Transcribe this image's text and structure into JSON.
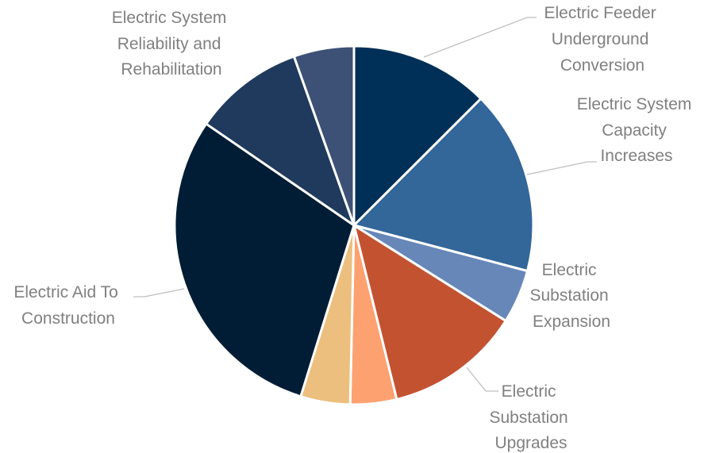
{
  "chart_data": {
    "type": "pie",
    "title": "",
    "slices": [
      {
        "label": "Electric Feeder Underground Conversion",
        "value": 12.9,
        "color": "#003057"
      },
      {
        "label": "Electric System Capacity Increases",
        "value": 17.1,
        "color": "#336699"
      },
      {
        "label": "Electric Substation Expansion",
        "value": 5.0,
        "color": "#6687b8"
      },
      {
        "label": "Electric Substation Upgrades",
        "value": 12.6,
        "color": "#c35231"
      },
      {
        "label": "",
        "value": 4.3,
        "color": "#fda171"
      },
      {
        "label": "",
        "value": 4.6,
        "color": "#ecbf7e"
      },
      {
        "label": "Electric Aid To Construction",
        "value": 30.7,
        "color": "#001d35"
      },
      {
        "label": "",
        "value": 10.3,
        "color": "#1f3a5c"
      },
      {
        "label": "Electric System Reliability and Rehabilitation",
        "value": 5.6,
        "color": "#3c5175"
      }
    ]
  },
  "labels": {
    "feeder": [
      "Electric Feeder",
      "Underground",
      "Conversion"
    ],
    "capacity": [
      "Electric System",
      "Capacity",
      "Increases"
    ],
    "expansion": [
      "Electric",
      "Substation",
      "Expansion"
    ],
    "upgrades": [
      "Electric",
      "Substation",
      "Upgrades"
    ],
    "aid": [
      "Electric Aid To",
      "Construction"
    ],
    "reliability": [
      "Electric System",
      "Reliability and",
      "Rehabilitation"
    ]
  }
}
